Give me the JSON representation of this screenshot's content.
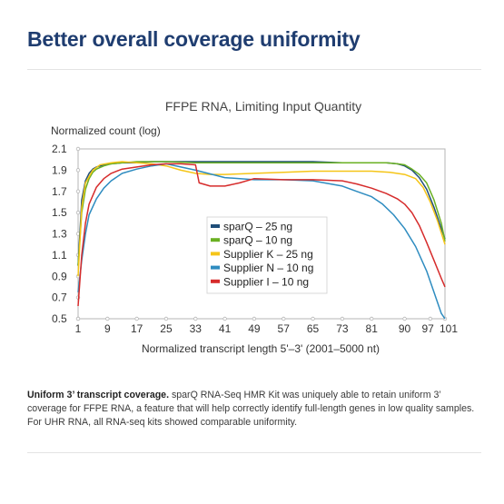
{
  "page": {
    "heading": "Better overall coverage uniformity",
    "caption_bold": "Uniform 3’ transcript coverage.",
    "caption_text": " sparQ RNA-Seq HMR Kit was uniquely able to retain uniform 3’ coverage for FFPE RNA, a feature that will help correctly identify full-length genes in low quality samples. For UHR RNA, all RNA-seq kits showed comparable uniformity."
  },
  "chart_data": {
    "type": "line",
    "title": "FFPE RNA, Limiting Input Quantity",
    "xlabel": "Normalized transcript length 5'–3' (2001–5000 nt)",
    "ylabel": "Normalized count (log)",
    "xlim": [
      1,
      101
    ],
    "ylim": [
      0.5,
      2.1
    ],
    "xticks": [
      1,
      9,
      17,
      25,
      33,
      41,
      49,
      57,
      65,
      73,
      81,
      90,
      97,
      101
    ],
    "yticks": [
      0.5,
      0.7,
      0.9,
      1.1,
      1.3,
      1.5,
      1.7,
      1.9,
      2.1
    ],
    "grid": false,
    "legend_position": "center",
    "series": [
      {
        "name": "sparQ – 25 ng",
        "color": "#1f4e79",
        "x": [
          1,
          2,
          3,
          4,
          5,
          6,
          8,
          10,
          13,
          17,
          21,
          25,
          33,
          41,
          49,
          57,
          65,
          73,
          81,
          85,
          88,
          90,
          92,
          94,
          96,
          98,
          100,
          101
        ],
        "y": [
          1.0,
          1.62,
          1.8,
          1.87,
          1.91,
          1.93,
          1.95,
          1.96,
          1.97,
          1.97,
          1.98,
          1.98,
          1.98,
          1.98,
          1.98,
          1.98,
          1.98,
          1.97,
          1.97,
          1.97,
          1.96,
          1.94,
          1.9,
          1.83,
          1.72,
          1.55,
          1.35,
          1.25
        ]
      },
      {
        "name": "sparQ – 10 ng",
        "color": "#6ab023",
        "x": [
          1,
          2,
          3,
          4,
          5,
          6,
          8,
          10,
          13,
          17,
          21,
          25,
          33,
          41,
          49,
          57,
          65,
          73,
          81,
          85,
          88,
          90,
          92,
          94,
          96,
          98,
          100,
          101
        ],
        "y": [
          1.0,
          1.5,
          1.72,
          1.82,
          1.88,
          1.91,
          1.94,
          1.96,
          1.97,
          1.98,
          1.98,
          1.98,
          1.97,
          1.97,
          1.97,
          1.97,
          1.97,
          1.97,
          1.97,
          1.97,
          1.96,
          1.95,
          1.91,
          1.86,
          1.78,
          1.62,
          1.4,
          1.23
        ]
      },
      {
        "name": "Supplier K – 25 ng",
        "color": "#f5c518",
        "x": [
          1,
          2,
          3,
          5,
          7,
          10,
          13,
          17,
          21,
          25,
          29,
          33,
          37,
          41,
          49,
          57,
          65,
          73,
          81,
          86,
          90,
          93,
          95,
          97,
          99,
          101
        ],
        "y": [
          0.9,
          1.55,
          1.78,
          1.9,
          1.95,
          1.97,
          1.98,
          1.97,
          1.96,
          1.94,
          1.9,
          1.87,
          1.86,
          1.86,
          1.87,
          1.88,
          1.89,
          1.89,
          1.89,
          1.88,
          1.86,
          1.82,
          1.74,
          1.6,
          1.42,
          1.2
        ]
      },
      {
        "name": "Supplier N – 10 ng",
        "color": "#2e8cc0",
        "x": [
          1,
          2,
          3,
          4,
          6,
          8,
          10,
          13,
          17,
          21,
          25,
          33,
          41,
          49,
          57,
          65,
          73,
          77,
          81,
          84,
          87,
          90,
          93,
          96,
          98,
          100,
          101
        ],
        "y": [
          0.75,
          1.05,
          1.3,
          1.48,
          1.63,
          1.73,
          1.8,
          1.87,
          1.91,
          1.94,
          1.96,
          1.9,
          1.83,
          1.81,
          1.81,
          1.8,
          1.75,
          1.7,
          1.65,
          1.58,
          1.48,
          1.35,
          1.18,
          0.95,
          0.75,
          0.55,
          0.5
        ]
      },
      {
        "name": "Supplier I – 10 ng",
        "color": "#d62b2b",
        "x": [
          1,
          2,
          3,
          4,
          6,
          8,
          10,
          13,
          17,
          21,
          25,
          29,
          33,
          34,
          37,
          41,
          45,
          49,
          57,
          65,
          73,
          77,
          81,
          85,
          88,
          90,
          92,
          94,
          96,
          98,
          100,
          101
        ],
        "y": [
          0.62,
          1.1,
          1.4,
          1.58,
          1.74,
          1.82,
          1.87,
          1.91,
          1.93,
          1.95,
          1.96,
          1.96,
          1.95,
          1.78,
          1.75,
          1.75,
          1.78,
          1.82,
          1.81,
          1.81,
          1.8,
          1.77,
          1.73,
          1.68,
          1.63,
          1.58,
          1.5,
          1.38,
          1.22,
          1.05,
          0.88,
          0.8
        ]
      }
    ]
  }
}
